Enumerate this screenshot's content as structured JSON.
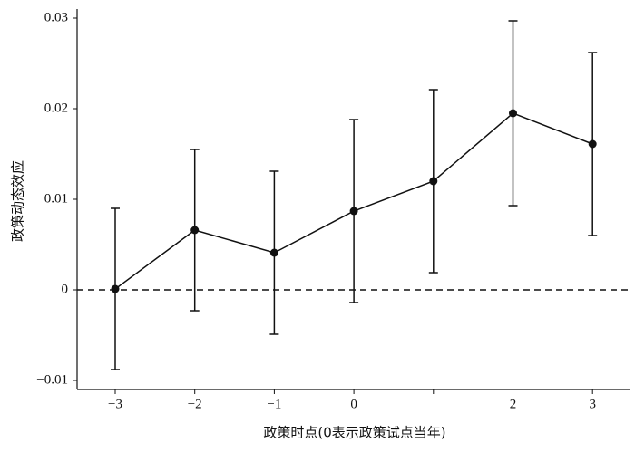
{
  "chart_data": {
    "type": "errorbar",
    "xlabel": "政策时点(0表示政策试点当年)",
    "ylabel": "政策动态效应",
    "categories": [
      "−3",
      "−2",
      "−1",
      "0",
      null,
      "2",
      "3"
    ],
    "values": [
      0.0001,
      0.0066,
      0.0041,
      0.0087,
      0.012,
      0.0195,
      0.0161
    ],
    "errors": [
      0.0089,
      0.0089,
      0.009,
      0.0101,
      0.0101,
      0.0102,
      0.0101
    ],
    "color": "#111111",
    "ylim": [
      -0.011,
      0.031
    ],
    "yticks": [
      {
        "value": -0.01,
        "label": "−0.01"
      },
      0,
      0.01,
      0.02,
      0.03
    ],
    "reference_line": 0
  }
}
